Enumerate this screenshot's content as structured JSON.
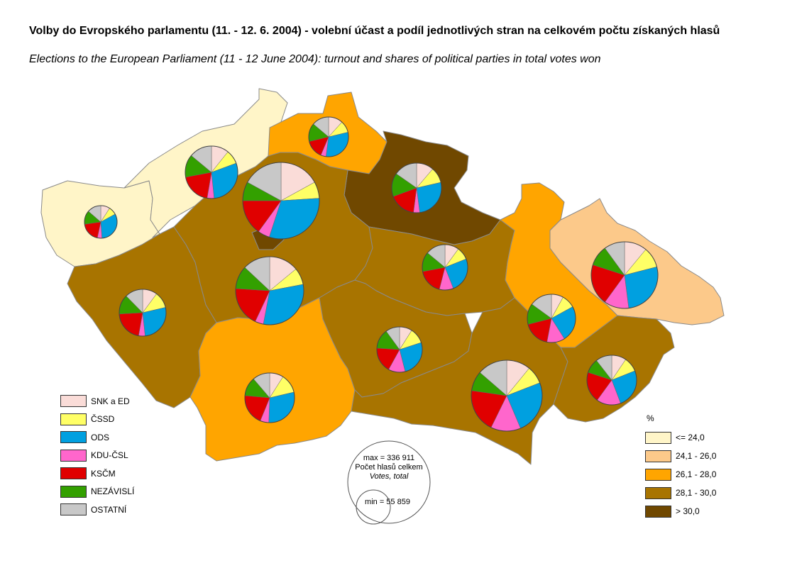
{
  "title": "Volby do Evropského parlamentu (11. - 12. 6. 2004) - volební účast a podíl jednotlivých stran na celkovém počtu získaných hlasů",
  "subtitle": "Elections to the European Parliament (11 - 12 June 2004): turnout and shares of political parties in total votes won",
  "parties": [
    {
      "name": "SNK a ED",
      "color": "#fadcd8"
    },
    {
      "name": "ČSSD",
      "color": "#ffff66"
    },
    {
      "name": "ODS",
      "color": "#00a0e0"
    },
    {
      "name": "KDU-ČSL",
      "color": "#ff66cc"
    },
    {
      "name": "KSČM",
      "color": "#e00000"
    },
    {
      "name": "NEZÁVISLÍ",
      "color": "#33a000"
    },
    {
      "name": "OSTATNÍ",
      "color": "#c8c8c8"
    }
  ],
  "turnout_legend": {
    "unit": "%",
    "classes": [
      {
        "label": "<= 24,0",
        "color": "#fff5c8"
      },
      {
        "label": "24,1 - 26,0",
        "color": "#fcc98a"
      },
      {
        "label": "26,1 - 28,0",
        "color": "#ffa500"
      },
      {
        "label": "28,1 - 30,0",
        "color": "#a87400"
      },
      {
        "label": "> 30,0",
        "color": "#704800"
      }
    ]
  },
  "size_legend": {
    "max": "max = 336 911",
    "caption_cz": "Počet hlasů celkem",
    "caption_en": "Votes, total",
    "min": "min = 55 859"
  }
}
